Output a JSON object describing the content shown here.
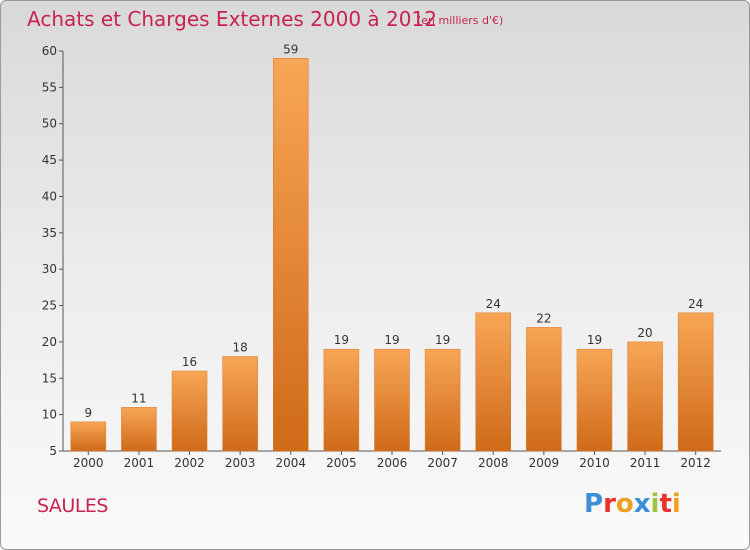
{
  "chart_data": {
    "type": "bar",
    "title": "Achats et Charges Externes 2000 à 2012",
    "subtitle": "(en milliers d'€)",
    "categories": [
      "2000",
      "2001",
      "2002",
      "2003",
      "2004",
      "2005",
      "2006",
      "2007",
      "2008",
      "2009",
      "2010",
      "2011",
      "2012"
    ],
    "values": [
      9,
      11,
      16,
      18,
      59,
      19,
      19,
      19,
      24,
      22,
      19,
      20,
      24
    ],
    "ylim": [
      5,
      60
    ],
    "yticks": [
      5,
      10,
      15,
      20,
      25,
      30,
      35,
      40,
      45,
      50,
      55,
      60
    ],
    "grid": false,
    "bar_color": "#e8822e"
  },
  "place_name": "SAULES",
  "brand": {
    "text": "Proxiti",
    "colors": [
      "#3a8fd6",
      "#e8332f",
      "#f0a020",
      "#3a8fd6",
      "#9dc43b",
      "#e8332f",
      "#f0a020"
    ]
  },
  "colors": {
    "title": "#c8234f",
    "axis": "#333333"
  }
}
